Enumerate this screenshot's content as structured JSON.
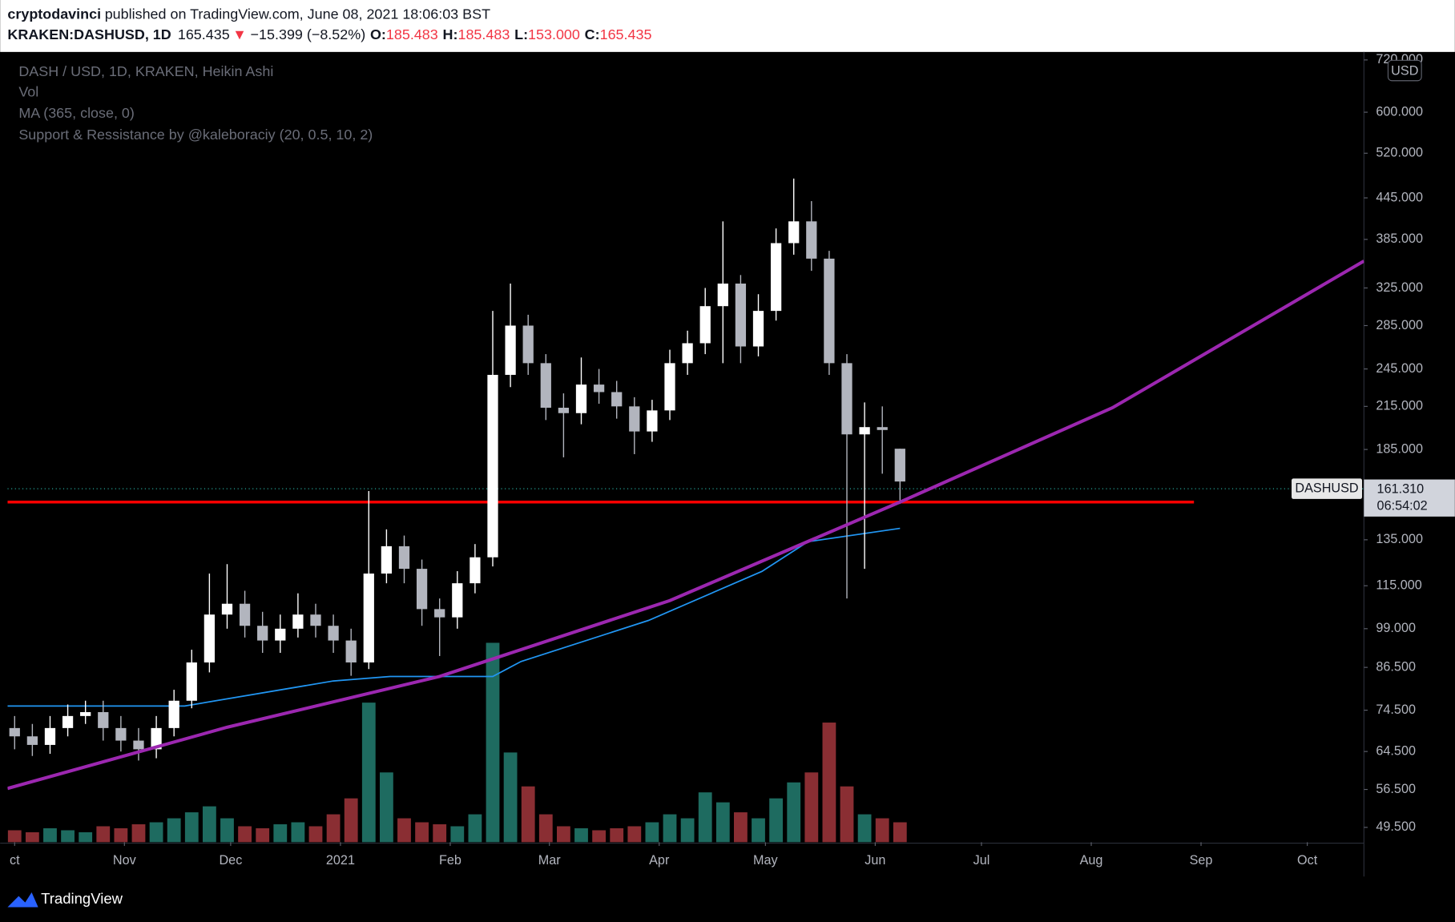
{
  "header": {
    "author": "cryptodavinci",
    "published": "published on TradingView.com, June 08, 2021 18:06:03 BST",
    "symbol": "KRAKEN:DASHUSD, 1D",
    "last": "165.435",
    "arrow": "▼",
    "change": "−15.399 (−8.52%)",
    "o_label": "O:",
    "o": "185.483",
    "h_label": "H:",
    "h": "185.483",
    "l_label": "L:",
    "l": "153.000",
    "c_label": "C:",
    "c": "165.435"
  },
  "chart_data": {
    "type": "candlestick",
    "title": "DASH / USD, 1D, KRAKEN, Heikin Ashi",
    "x": [
      0,
      5,
      10,
      15,
      20,
      25,
      30,
      35,
      40,
      45,
      50,
      55,
      60,
      65,
      70,
      75,
      80,
      85,
      90,
      95,
      100,
      105,
      110,
      115,
      120,
      125,
      130,
      135,
      140,
      145,
      150,
      155,
      160,
      165,
      170,
      175,
      180,
      185,
      190,
      195,
      200,
      205,
      210,
      215,
      220,
      225,
      230,
      235,
      240,
      245,
      250
    ],
    "open": [
      70,
      68,
      66,
      70,
      73,
      74,
      70,
      67,
      65,
      70,
      77,
      88,
      104,
      108,
      100,
      95,
      99,
      104,
      100,
      95,
      88,
      120,
      132,
      122,
      106,
      103,
      116,
      127,
      240,
      285,
      250,
      214,
      210,
      232,
      226,
      215,
      197,
      212,
      250,
      268,
      305,
      330,
      265,
      300,
      380,
      410,
      360,
      250,
      195,
      200,
      185.483
    ],
    "high": [
      73,
      71,
      73,
      76,
      77,
      77,
      73,
      70,
      73,
      80,
      92,
      120,
      124,
      113,
      105,
      104,
      112,
      108,
      104,
      99,
      160,
      140,
      137,
      126,
      110,
      121,
      133,
      300,
      330,
      296,
      258,
      225,
      255,
      245,
      235,
      222,
      220,
      262,
      280,
      325,
      410,
      340,
      318,
      400,
      476,
      440,
      370,
      258,
      218,
      215,
      185.483
    ],
    "low": [
      65,
      63.5,
      64,
      68,
      71,
      67,
      64.5,
      62.5,
      63,
      68,
      75,
      85,
      99,
      96,
      91,
      91,
      96,
      96,
      91,
      84,
      86,
      116,
      116,
      100,
      90,
      99,
      112,
      123,
      230,
      240,
      205,
      180,
      202,
      217,
      206,
      182,
      190,
      205,
      240,
      258,
      250,
      250,
      256,
      290,
      365,
      345,
      240,
      110,
      122,
      170,
      153
    ],
    "close": [
      68,
      66,
      70,
      73,
      74,
      70,
      67,
      65,
      70,
      77,
      88,
      104,
      108,
      100,
      95,
      99,
      104,
      100,
      95,
      88,
      120,
      132,
      122,
      106,
      103,
      116,
      127,
      240,
      285,
      250,
      214,
      210,
      232,
      226,
      215,
      197,
      212,
      250,
      268,
      305,
      330,
      265,
      300,
      380,
      410,
      360,
      250,
      195,
      200,
      198,
      165.435
    ],
    "up_color": "#ffffff",
    "down_color": "#b2b5be",
    "volume": {
      "name": "Vol",
      "values": [
        6,
        5,
        7,
        6,
        5,
        8,
        7,
        9,
        10,
        12,
        15,
        18,
        12,
        8,
        7,
        9,
        10,
        8,
        14,
        22,
        70,
        35,
        12,
        10,
        9,
        8,
        14,
        100,
        45,
        28,
        14,
        8,
        7,
        6,
        7,
        8,
        10,
        14,
        12,
        25,
        20,
        15,
        12,
        22,
        30,
        35,
        60,
        28,
        14,
        12,
        10
      ],
      "ylim": [
        0,
        100
      ],
      "up_color": "#1e6b60",
      "down_color": "#8a2e33"
    },
    "ma": {
      "name": "MA (365, close, 0)",
      "color": "#2196f3",
      "x": [
        -2,
        48,
        90,
        106,
        135,
        143,
        179,
        211,
        224,
        250
      ],
      "values": [
        75.6,
        75.6,
        82.5,
        83.8,
        83.8,
        88.3,
        101.9,
        120.9,
        134.1,
        140.5
      ]
    },
    "support": {
      "name": "Support & Ressistance by @kaleboraciy (20, 0.5, 10, 2)",
      "color": "#ff0000",
      "x": [
        -2,
        333
      ],
      "value": 154
    },
    "curve": {
      "color": "#9c27b0",
      "x": [
        -2,
        60,
        120,
        185,
        250,
        310,
        381
      ],
      "values": [
        56.7,
        70.2,
        83.8,
        109.2,
        154,
        214,
        357
      ]
    },
    "last_price": {
      "symbol": "DASHUSD",
      "value": 161.31,
      "label": "161.310",
      "countdown": "06:54:02"
    },
    "currency": "USD",
    "log_scale": true,
    "grid": false,
    "xlim": [
      -2,
      381
    ],
    "ylim": [
      47,
      738
    ],
    "xticks": [
      {
        "value": 0,
        "label": "ct"
      },
      {
        "value": 31,
        "label": "Nov"
      },
      {
        "value": 61,
        "label": "Dec"
      },
      {
        "value": 92,
        "label": "2021"
      },
      {
        "value": 123,
        "label": "Feb"
      },
      {
        "value": 151,
        "label": "Mar"
      },
      {
        "value": 182,
        "label": "Apr"
      },
      {
        "value": 212,
        "label": "May"
      },
      {
        "value": 243,
        "label": "Jun"
      },
      {
        "value": 273,
        "label": "Jul"
      },
      {
        "value": 304,
        "label": "Aug"
      },
      {
        "value": 335,
        "label": "Sep"
      },
      {
        "value": 365,
        "label": "Oct"
      }
    ],
    "yticks": [
      {
        "value": 720,
        "label": "720.000"
      },
      {
        "value": 600,
        "label": "600.000"
      },
      {
        "value": 520,
        "label": "520.000"
      },
      {
        "value": 445,
        "label": "445.000"
      },
      {
        "value": 385,
        "label": "385.000"
      },
      {
        "value": 325,
        "label": "325.000"
      },
      {
        "value": 285,
        "label": "285.000"
      },
      {
        "value": 245,
        "label": "245.000"
      },
      {
        "value": 215,
        "label": "215.000"
      },
      {
        "value": 185,
        "label": "185.000"
      },
      {
        "value": 135,
        "label": "135.000"
      },
      {
        "value": 115,
        "label": "115.000"
      },
      {
        "value": 99,
        "label": "99.000"
      },
      {
        "value": 86.5,
        "label": "86.500"
      },
      {
        "value": 74.5,
        "label": "74.500"
      },
      {
        "value": 64.5,
        "label": "64.500"
      },
      {
        "value": 56.5,
        "label": "56.500"
      },
      {
        "value": 49.5,
        "label": "49.500"
      }
    ]
  },
  "footer": {
    "brand": "TradingView"
  }
}
